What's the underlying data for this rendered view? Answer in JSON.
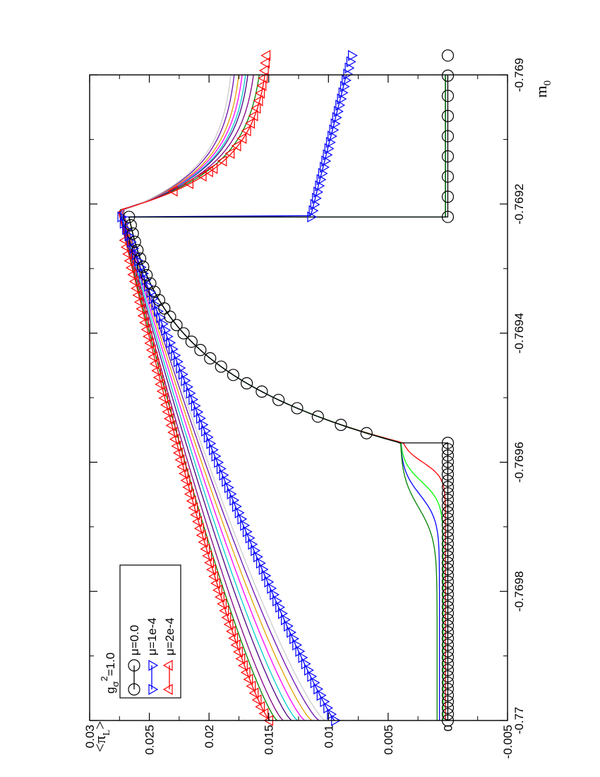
{
  "chart_data": {
    "type": "line",
    "orientation": "rotated-90-ccw",
    "xlabel": "m0",
    "xlabel_main": "m",
    "xlabel_sub": "0",
    "ylabel": "<πL>",
    "ylabel_main": "<π",
    "ylabel_sub": "L",
    "ylabel_close": ">",
    "xlim": [
      -0.77,
      -0.769
    ],
    "ylim": [
      -0.005,
      0.03
    ],
    "x_ticks": [
      "-0.77",
      "-0.7698",
      "-0.7696",
      "-0.7694",
      "-0.7692",
      "-0.769"
    ],
    "x_tick_values": [
      -0.77,
      -0.7698,
      -0.7696,
      -0.7694,
      -0.7692,
      -0.769
    ],
    "y_ticks": [
      "-0.005",
      "0",
      "0.005",
      "0.01",
      "0.015",
      "0.02",
      "0.025",
      "0.03"
    ],
    "y_tick_values": [
      -0.005,
      0,
      0.005,
      0.01,
      0.015,
      0.02,
      0.025,
      0.03
    ],
    "legend": {
      "title_main": "g",
      "title_sub": "σ",
      "title_sup": "2",
      "title_rest": "=1.0",
      "entries": [
        {
          "label": "μ=0.0",
          "color": "#000000",
          "marker": "circle"
        },
        {
          "label": "μ=1e-4",
          "color": "#0000ff",
          "marker": "triangle-up"
        },
        {
          "label": "μ=2e-4",
          "color": "#ff0000",
          "marker": "triangle-down"
        }
      ]
    },
    "series": [
      {
        "name": "μ=0.0",
        "color": "#000000",
        "marker": "circle",
        "breaks": [
          -0.76957,
          -0.76922
        ],
        "low": 0.0,
        "high_start": 0.004,
        "high_end": 0.0267,
        "high_k": 2.9
      },
      {
        "name": "μ=1e-4",
        "color": "#0000ff",
        "marker": "triangle-up",
        "drop": -0.76922,
        "start": 0.0095,
        "peak": 0.0274,
        "after_drop": 0.0115,
        "end": 0.0085
      },
      {
        "name": "μ=2e-4",
        "color": "#ff0000",
        "marker": "triangle-down",
        "start": 0.0149,
        "peak": 0.0276,
        "peak_x": -0.76921,
        "end": 0.0148
      }
    ],
    "extra_curves": {
      "upper_branch": [
        {
          "color": "#008000",
          "start": 0.0143,
          "end": 0.0153
        },
        {
          "color": "#800080",
          "start": 0.0138,
          "end": 0.0158
        },
        {
          "color": "#4b0082",
          "start": 0.0131,
          "end": 0.0163
        },
        {
          "color": "#00cccc",
          "start": 0.0126,
          "end": 0.0165
        },
        {
          "color": "#ff00ff",
          "start": 0.012,
          "end": 0.0168
        },
        {
          "color": "#e0a000",
          "start": 0.0114,
          "end": 0.0171
        },
        {
          "color": "#6a0dad",
          "start": 0.0108,
          "end": 0.0175
        },
        {
          "color": "#cccccc",
          "start": 0.0103,
          "end": 0.0178
        }
      ],
      "lower_branch": [
        {
          "color": "#ff0000",
          "x50": -0.7696,
          "width": 1.2e-05,
          "start": 0.0002,
          "end": 0.0266
        },
        {
          "color": "#00ff00",
          "x50": -0.76963,
          "width": 1.6e-05,
          "start": 0.0004,
          "end": 0.0266
        },
        {
          "color": "#0000ff",
          "x50": -0.76965,
          "width": 2e-05,
          "start": 0.0007,
          "end": 0.0266
        },
        {
          "color": "#008000",
          "x50": -0.76967,
          "width": 2.5e-05,
          "start": 0.0009,
          "end": 0.0266
        }
      ],
      "post_jump_flat": {
        "color": "#008000",
        "value": 0.0002
      }
    }
  }
}
